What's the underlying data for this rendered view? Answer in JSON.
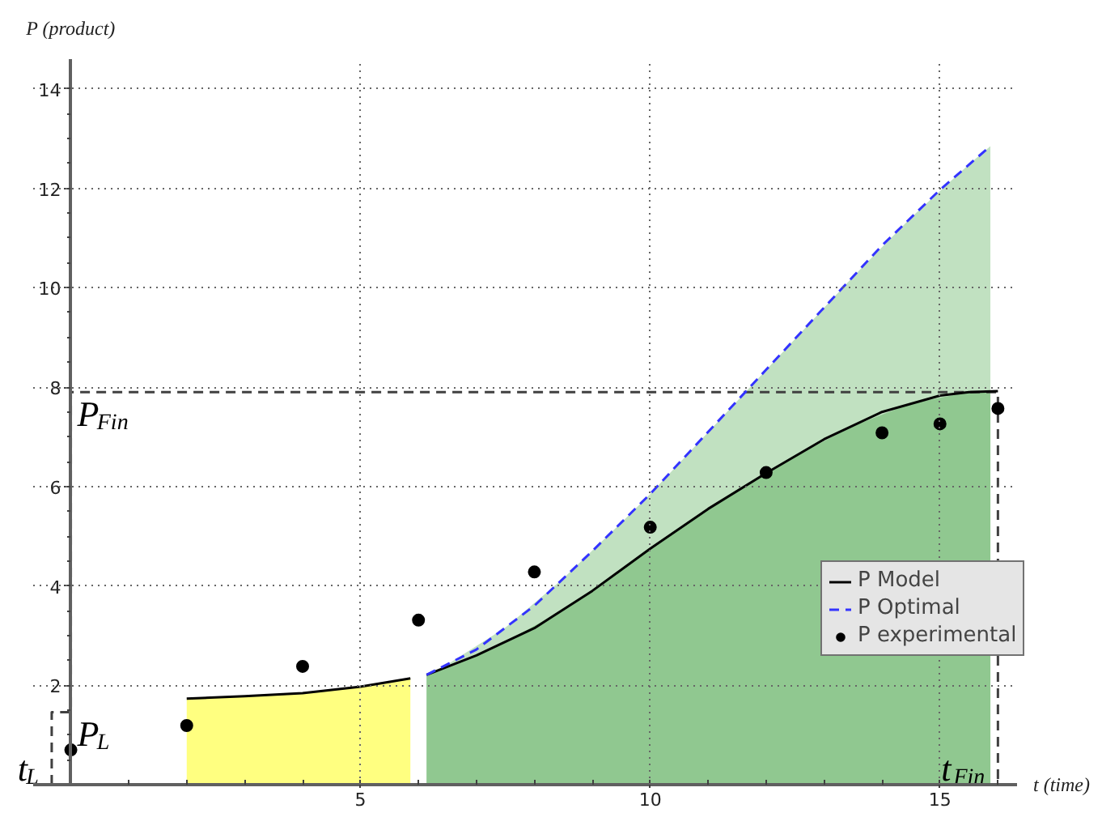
{
  "chart_data": {
    "type": "line",
    "xlabel": "t (time)",
    "ylabel": "P (product)",
    "xlim": [
      -0.65,
      16.33
    ],
    "ylim": [
      0,
      14.6
    ],
    "xticks": [
      {
        "value": 1,
        "label": null
      },
      {
        "value": 2,
        "label": null
      },
      {
        "value": 3,
        "label": null
      },
      {
        "value": 4,
        "label": null
      },
      5,
      {
        "value": 6,
        "label": null
      },
      {
        "value": 7,
        "label": null
      },
      {
        "value": 8,
        "label": null
      },
      {
        "value": 9,
        "label": null
      },
      10,
      {
        "value": 11,
        "label": null
      },
      {
        "value": 12,
        "label": null
      },
      {
        "value": 13,
        "label": null
      },
      {
        "value": 14,
        "label": null
      },
      15,
      {
        "value": 16,
        "label": null
      }
    ],
    "yticks": [
      {
        "value": 0.5,
        "label": null
      },
      {
        "value": 1,
        "label": null
      },
      {
        "value": 1.5,
        "label": null
      },
      2,
      {
        "value": 2.5,
        "label": null
      },
      {
        "value": 3,
        "label": null
      },
      {
        "value": 3.5,
        "label": null
      },
      4,
      {
        "value": 4.5,
        "label": null
      },
      {
        "value": 5,
        "label": null
      },
      {
        "value": 5.5,
        "label": null
      },
      6,
      {
        "value": 6.5,
        "label": null
      },
      {
        "value": 7,
        "label": null
      },
      {
        "value": 7.5,
        "label": null
      },
      8,
      {
        "value": 8.5,
        "label": null
      },
      {
        "value": 9,
        "label": null
      },
      {
        "value": 9.5,
        "label": null
      },
      10,
      {
        "value": 10.5,
        "label": null
      },
      {
        "value": 11,
        "label": null
      },
      {
        "value": 11.5,
        "label": null
      },
      12,
      {
        "value": 12.5,
        "label": null
      },
      {
        "value": 13,
        "label": null
      },
      {
        "value": 13.5,
        "label": null
      },
      14
    ],
    "grid": true,
    "legend": "right",
    "annotations": [
      {
        "text": "P$_{Fin}$",
        "x": 0,
        "y": 7.9
      },
      {
        "text": "t$_{Fin}$",
        "x": 16,
        "y": 0
      },
      {
        "text": "P$_{L}$",
        "x": 0,
        "y": 1.46
      },
      {
        "text": "t$_{L}$",
        "x": -0.33,
        "y": 0
      }
    ],
    "series": [
      {
        "type": "area",
        "color": "#c1e1c1",
        "x": [
          6.14,
          6.5,
          7.5,
          8.5,
          9.5,
          10
        ],
        "values": [
          2.21,
          2.42,
          3.16,
          4.15,
          5.27,
          5.85
        ]
      },
      {
        "type": "area",
        "color": "#c1e1c1",
        "x": [
          10,
          10.5,
          11.5,
          12.5,
          13.5,
          14.5,
          15.5,
          15.87
        ],
        "values": [
          5.85,
          6.47,
          7.72,
          8.97,
          10.22,
          11.41,
          12.48,
          12.85
        ]
      },
      {
        "type": "area",
        "color": "#90c890",
        "x": [
          6.14,
          6.5,
          7.5,
          8.5,
          9.5,
          10.5,
          11.5,
          12.5,
          13.5,
          14.5,
          15.5,
          15.87
        ],
        "values": [
          2.21,
          2.37,
          2.87,
          3.52,
          4.32,
          5.15,
          5.91,
          6.61,
          7.22,
          7.67,
          7.9,
          7.91
        ]
      },
      {
        "type": "area",
        "color": "#ffff80",
        "x": [
          2,
          2.5,
          3.5,
          4.5,
          5
        ],
        "values": [
          1.73,
          1.75,
          1.81,
          1.9,
          1.97
        ]
      },
      {
        "type": "area",
        "color": "#ffff80",
        "x": [
          5,
          5.5,
          5.86
        ],
        "values": [
          1.97,
          2.06,
          2.14
        ]
      },
      {
        "color": "#404040",
        "line_style": "dashed",
        "x": [
          -0.33,
          -0.33,
          0,
          0,
          16,
          16
        ],
        "values": [
          0,
          1.46,
          1.46,
          7.9,
          7.9,
          0
        ]
      },
      {
        "name": "P Model",
        "color": "#000000",
        "x": [
          2,
          3,
          4,
          5,
          5.86,
          6,
          6.14,
          7,
          8,
          9,
          10,
          11,
          12,
          13,
          14,
          15,
          15.5,
          16
        ],
        "values": [
          1.73,
          1.78,
          1.84,
          1.97,
          2.14,
          null,
          2.21,
          2.6,
          3.15,
          3.9,
          4.75,
          5.55,
          6.27,
          6.95,
          7.5,
          7.83,
          7.9,
          7.92
        ]
      },
      {
        "name": "P Optimal",
        "color": "#3333ff",
        "line_style": "dashed",
        "x": [
          6.14,
          7,
          8,
          9,
          10,
          11,
          12,
          13,
          14,
          15,
          15.87
        ],
        "values": [
          2.21,
          2.72,
          3.6,
          4.7,
          5.85,
          7.1,
          8.35,
          9.6,
          10.85,
          11.97,
          12.85
        ]
      },
      {
        "name": "P experimental",
        "type": "scatter",
        "color": "#000000",
        "marker": "circle",
        "x": [
          0,
          2,
          4,
          6,
          8,
          10,
          12,
          14,
          15,
          16
        ],
        "values": [
          0.7,
          1.19,
          2.38,
          3.31,
          4.28,
          5.18,
          6.28,
          7.08,
          7.26,
          7.57
        ]
      }
    ]
  }
}
